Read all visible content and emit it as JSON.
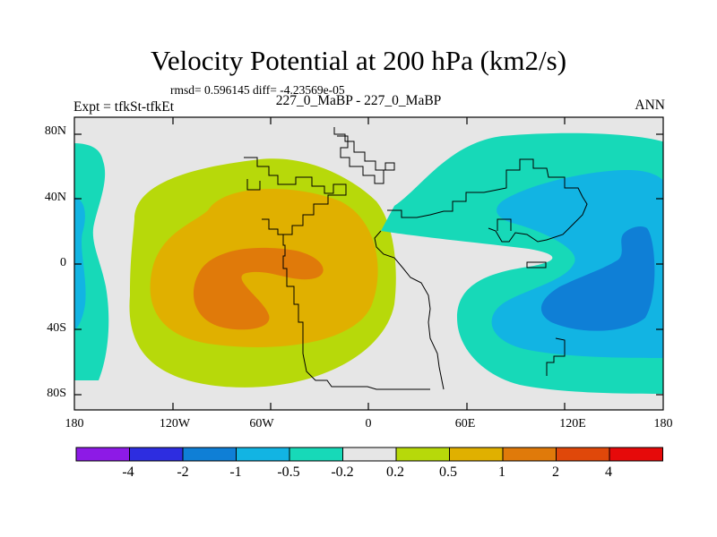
{
  "title": "Velocity Potential at 200 hPa (km2/s)",
  "stats_line": "rmsd= 0.596145 diff= -4.23569e-05",
  "case_line": "227_0_MaBP - 227_0_MaBP",
  "expt_line": "Expt = tfkSt-tfkEt",
  "season": "ANN",
  "lat_ticks": [
    "80N",
    "40N",
    "0",
    "40S",
    "80S"
  ],
  "lon_ticks": [
    "180",
    "120W",
    "60W",
    "0",
    "60E",
    "120E",
    "180"
  ],
  "colorbar": {
    "levels": [
      "-4",
      "-2",
      "-1",
      "-0.5",
      "-0.2",
      "0.2",
      "0.5",
      "1",
      "2",
      "4"
    ],
    "colors": [
      "#8d1ae6",
      "#2d2de0",
      "#0f7fd6",
      "#12b4e3",
      "#17d9b8",
      "#e6e6e6",
      "#b7d90a",
      "#e0b000",
      "#e07a0a",
      "#e0480a",
      "#e60a0a"
    ]
  },
  "map_colors": {
    "neutral": "#e6e6e6",
    "cyan": "#17d9b8",
    "light_blue": "#12b4e3",
    "blue": "#0f7fd6",
    "lime": "#b7d90a",
    "gold": "#e0b000",
    "orange": "#e07a0a"
  }
}
